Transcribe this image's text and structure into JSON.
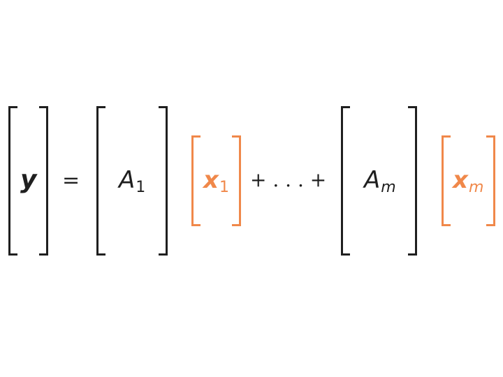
{
  "equation": {
    "lhs": "y",
    "equals": "=",
    "matrix1": {
      "base": "A",
      "sub": "1"
    },
    "vector1": {
      "base": "x",
      "sub": "1"
    },
    "dots": "+ . . . +",
    "matrix_m": {
      "base": "A",
      "sub": "m"
    },
    "vector_m": {
      "base": "x",
      "sub": "m"
    }
  },
  "colors": {
    "dark": "#1f1f1f",
    "orange": "#f0884a",
    "background": "#ffffff"
  }
}
